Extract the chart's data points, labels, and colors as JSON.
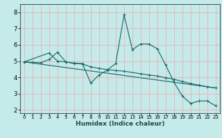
{
  "xlabel": "Humidex (Indice chaleur)",
  "bg_color": "#c5eaea",
  "grid_color": "#e8b8b8",
  "line_color": "#1a6b6b",
  "xlim": [
    -0.5,
    23.5
  ],
  "ylim": [
    1.8,
    8.5
  ],
  "xticks": [
    0,
    1,
    2,
    3,
    4,
    5,
    6,
    7,
    8,
    9,
    10,
    11,
    12,
    13,
    14,
    15,
    16,
    17,
    18,
    19,
    20,
    21,
    22,
    23
  ],
  "yticks": [
    2,
    3,
    4,
    5,
    6,
    7,
    8
  ],
  "series1_x": [
    0,
    1,
    2,
    3,
    4,
    5,
    6,
    7,
    8,
    9,
    10,
    11,
    12,
    13,
    14,
    15,
    16,
    17,
    18,
    19,
    20,
    21,
    22,
    23
  ],
  "series1_y": [
    4.95,
    4.92,
    4.9,
    5.1,
    5.55,
    4.95,
    4.85,
    4.85,
    3.65,
    4.15,
    4.45,
    4.85,
    7.85,
    5.7,
    6.05,
    6.05,
    5.75,
    4.75,
    3.7,
    2.85,
    2.4,
    2.55,
    2.55,
    2.25
  ],
  "series2_x": [
    0,
    3,
    4,
    5,
    6,
    7,
    8,
    9,
    10,
    11,
    12,
    14,
    15,
    16,
    17,
    18,
    19,
    20,
    21,
    22,
    23
  ],
  "series2_y": [
    4.95,
    5.5,
    5.0,
    4.95,
    4.88,
    4.82,
    4.65,
    4.55,
    4.48,
    4.42,
    4.38,
    4.22,
    4.15,
    4.08,
    3.98,
    3.88,
    3.75,
    3.62,
    3.52,
    3.42,
    3.35
  ],
  "series3_x": [
    0,
    23
  ],
  "series3_y": [
    4.95,
    3.35
  ]
}
